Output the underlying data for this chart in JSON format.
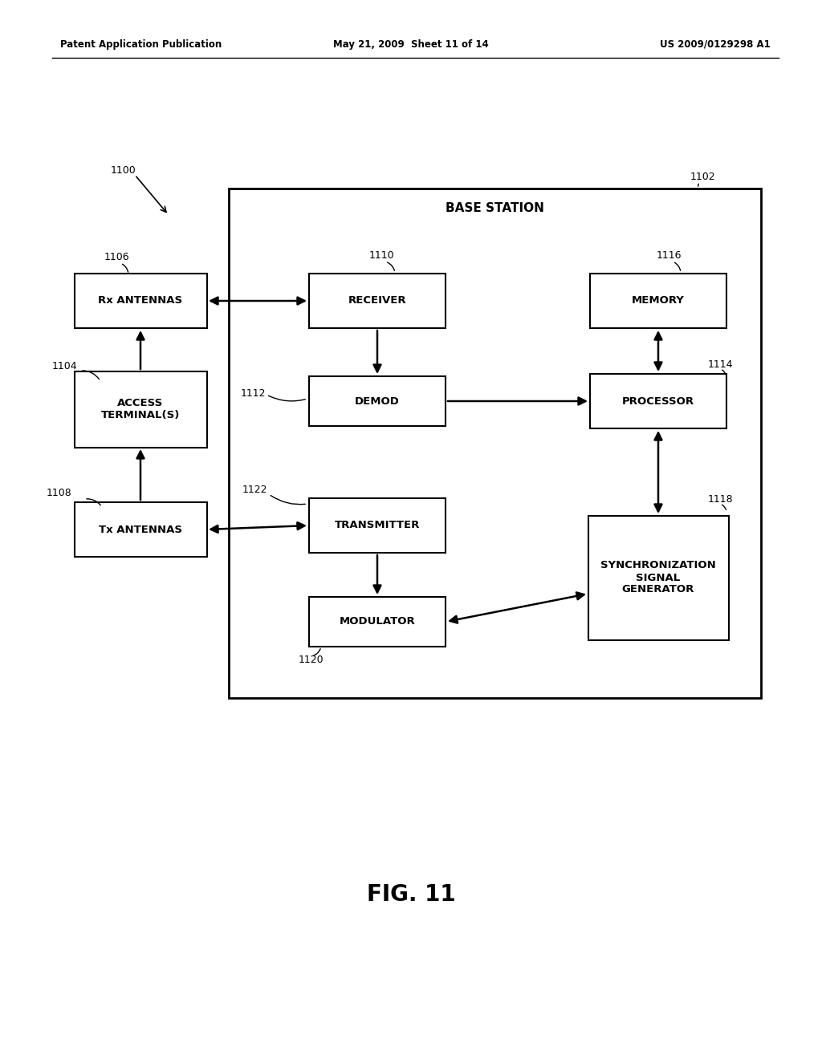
{
  "title": "FIG. 11",
  "header_left": "Patent Application Publication",
  "header_center": "May 21, 2009  Sheet 11 of 14",
  "header_right": "US 2009/0129298 A1",
  "bg_color": "#ffffff",
  "box_edge_color": "#000000",
  "text_color": "#000000",
  "label_1100": "1100",
  "label_1102": "1102",
  "label_1104": "1104",
  "label_1106": "1106",
  "label_1108": "1108",
  "label_1110": "1110",
  "label_1112": "1112",
  "label_1114": "1114",
  "label_1116": "1116",
  "label_1118": "1118",
  "label_1120": "1120",
  "label_1122": "1122",
  "base_station_label": "BASE STATION",
  "rx_antennas_label": "Rx ANTENNAS",
  "access_terminal_label": "ACCESS\nTERMINAL(S)",
  "tx_antennas_label": "Tx ANTENNAS",
  "receiver_label": "RECEIVER",
  "demod_label": "DEMOD",
  "transmitter_label": "TRANSMITTER",
  "modulator_label": "MODULATOR",
  "memory_label": "MEMORY",
  "processor_label": "PROCESSOR",
  "sync_label": "SYNCHRONIZATION\nSIGNAL\nGENERATOR"
}
